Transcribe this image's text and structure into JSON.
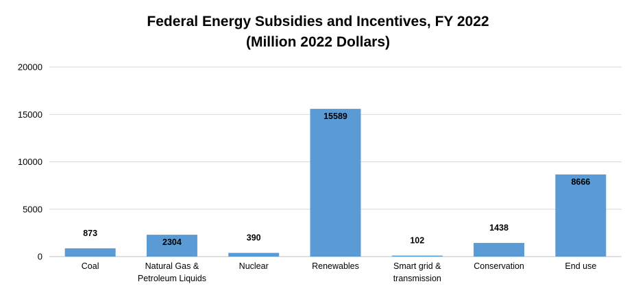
{
  "chart_data": {
    "type": "bar",
    "title": "Federal Energy Subsidies and Incentives, FY 2022",
    "subtitle": "(Million 2022 Dollars)",
    "categories": [
      [
        "Coal"
      ],
      [
        "Natural Gas &",
        "Petroleum Liquids"
      ],
      [
        "Nuclear"
      ],
      [
        "Renewables"
      ],
      [
        "Smart grid &",
        "transmission"
      ],
      [
        "Conservation"
      ],
      [
        "End use"
      ]
    ],
    "values": [
      873,
      2304,
      390,
      15589,
      102,
      1438,
      8666
    ],
    "data_labels": [
      "873",
      "2304",
      "390",
      "15589",
      "102",
      "1438",
      "8666"
    ],
    "ylim": [
      0,
      20000
    ],
    "yticks": [
      "0",
      "5000",
      "10000",
      "15000",
      "20000"
    ],
    "grid": true,
    "legend": "none",
    "colors": {
      "bar": "#5b9bd5",
      "grid": "#d9d9d9",
      "axis": "#bfbfbf"
    }
  }
}
